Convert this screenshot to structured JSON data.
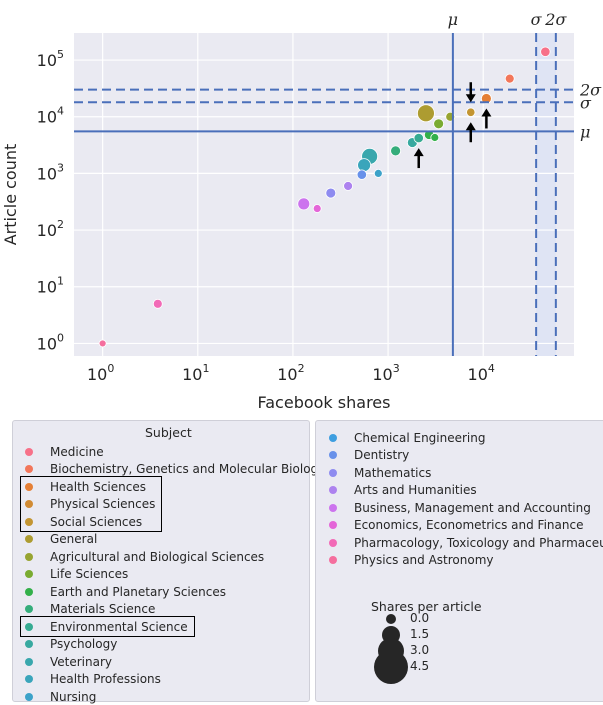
{
  "chart_data": {
    "type": "scatter",
    "xlabel": "Facebook shares",
    "ylabel": "Article count",
    "xscale": "log",
    "yscale": "log",
    "xlim": [
      0.5,
      90000
    ],
    "ylim": [
      0.6,
      300000
    ],
    "x_ticks": [
      {
        "value": 1,
        "label": "10^0"
      },
      {
        "value": 10,
        "label": "10^1"
      },
      {
        "value": 100,
        "label": "10^2"
      },
      {
        "value": 1000,
        "label": "10^3"
      },
      {
        "value": 10000,
        "label": "10^4"
      }
    ],
    "y_ticks": [
      {
        "value": 1,
        "label": "10^0"
      },
      {
        "value": 10,
        "label": "10^1"
      },
      {
        "value": 100,
        "label": "10^2"
      },
      {
        "value": 1000,
        "label": "10^3"
      },
      {
        "value": 10000,
        "label": "10^4"
      },
      {
        "value": 100000,
        "label": "10^5"
      }
    ],
    "grid": true,
    "reference_lines": [
      {
        "axis": "x",
        "value": 4800,
        "style": "solid",
        "label": "μ"
      },
      {
        "axis": "x",
        "value": 36000,
        "style": "dashed",
        "label": "σ"
      },
      {
        "axis": "x",
        "value": 58000,
        "style": "dashed",
        "label": "2σ"
      },
      {
        "axis": "y",
        "value": 5500,
        "style": "solid",
        "label": "μ"
      },
      {
        "axis": "y",
        "value": 18000,
        "style": "dashed",
        "label": "σ"
      },
      {
        "axis": "y",
        "value": 30000,
        "style": "dashed",
        "label": "2σ"
      }
    ],
    "shaded_band": {
      "x_from": 36000,
      "x_to": 58000
    },
    "arrows": [
      {
        "x": 7400,
        "y": 12000,
        "direction": "down"
      },
      {
        "x": 7400,
        "y": 12000,
        "direction": "up"
      },
      {
        "x": 10800,
        "y": 21000,
        "direction": "up"
      },
      {
        "x": 2100,
        "y": 4200,
        "direction": "up"
      }
    ],
    "points": [
      {
        "subject": "Medicine",
        "x": 45000,
        "y": 140000,
        "shares_per_article": 0.45
      },
      {
        "subject": "Biochemistry, Genetics and Molecular Biology",
        "x": 19000,
        "y": 47000,
        "shares_per_article": 0.4
      },
      {
        "subject": "Health Sciences",
        "x": 10800,
        "y": 21000,
        "shares_per_article": 0.5
      },
      {
        "subject": "Physical Sciences",
        "x": 7400,
        "y": 12000,
        "shares_per_article": 0.35
      },
      {
        "subject": "Social Sciences",
        "x": 7400,
        "y": 12000,
        "shares_per_article": 0.35
      },
      {
        "subject": "General",
        "x": 2500,
        "y": 11500,
        "shares_per_article": 1.2
      },
      {
        "subject": "Agricultural and Biological Sciences",
        "x": 4500,
        "y": 10000,
        "shares_per_article": 0.4
      },
      {
        "subject": "Life Sciences",
        "x": 3400,
        "y": 7500,
        "shares_per_article": 0.5
      },
      {
        "subject": "Earth and Planetary Sciences",
        "x": 2700,
        "y": 4800,
        "shares_per_article": 0.45
      },
      {
        "subject": "Earth and Planetary Sciences",
        "x": 3100,
        "y": 4300,
        "shares_per_article": 0.3
      },
      {
        "subject": "Materials Science",
        "x": 1200,
        "y": 2500,
        "shares_per_article": 0.5
      },
      {
        "subject": "Environmental Science",
        "x": 2100,
        "y": 4200,
        "shares_per_article": 0.45
      },
      {
        "subject": "Psychology",
        "x": 1800,
        "y": 3500,
        "shares_per_article": 0.5
      },
      {
        "subject": "Veterinary",
        "x": 640,
        "y": 2000,
        "shares_per_article": 1.1
      },
      {
        "subject": "Health Professions",
        "x": 560,
        "y": 1400,
        "shares_per_article": 0.8
      },
      {
        "subject": "Nursing",
        "x": 790,
        "y": 1000,
        "shares_per_article": 0.3
      },
      {
        "subject": "Dentistry",
        "x": 530,
        "y": 950,
        "shares_per_article": 0.45
      },
      {
        "subject": "Mathematics",
        "x": 250,
        "y": 450,
        "shares_per_article": 0.5
      },
      {
        "subject": "Arts and Humanities",
        "x": 380,
        "y": 600,
        "shares_per_article": 0.4
      },
      {
        "subject": "Business, Management and Accounting",
        "x": 130,
        "y": 290,
        "shares_per_article": 0.7
      },
      {
        "subject": "Economics, Econometrics and Finance",
        "x": 180,
        "y": 240,
        "shares_per_article": 0.3
      },
      {
        "subject": "Pharmacology, Toxicology and Pharmaceutics",
        "x": 3.8,
        "y": 5,
        "shares_per_article": 0.4
      },
      {
        "subject": "Physics and Astronomy",
        "x": 1,
        "y": 1,
        "shares_per_article": 0.2
      }
    ]
  },
  "legend": {
    "subject_title": "Subject",
    "subjects_left": [
      {
        "label": "Medicine",
        "color": "#f77189"
      },
      {
        "label": "Biochemistry, Genetics and Molecular Biology",
        "color": "#f2765a"
      },
      {
        "label": "Health Sciences",
        "color": "#e57f35"
      },
      {
        "label": "Physical Sciences",
        "color": "#d18b33"
      },
      {
        "label": "Social Sciences",
        "color": "#c39532"
      },
      {
        "label": "General",
        "color": "#ad9c31"
      },
      {
        "label": "Agricultural and Biological Sciences",
        "color": "#97a431"
      },
      {
        "label": "Life Sciences",
        "color": "#7aab31"
      },
      {
        "label": "Earth and Planetary Sciences",
        "color": "#33b04a"
      },
      {
        "label": "Materials Science",
        "color": "#35ad7b"
      },
      {
        "label": "Environmental Science",
        "color": "#36ab92"
      },
      {
        "label": "Psychology",
        "color": "#38a9a0"
      },
      {
        "label": "Veterinary",
        "color": "#39a7ad"
      },
      {
        "label": "Health Professions",
        "color": "#3aa5bb"
      },
      {
        "label": "Nursing",
        "color": "#3ca2c9"
      }
    ],
    "subjects_right": [
      {
        "label": "Chemical Engineering",
        "color": "#3e9ee0"
      },
      {
        "label": "Dentistry",
        "color": "#6891ea"
      },
      {
        "label": "Mathematics",
        "color": "#8e8bf0"
      },
      {
        "label": "Arts and Humanities",
        "color": "#ad82ef"
      },
      {
        "label": "Business, Management and Accounting",
        "color": "#cc74ee"
      },
      {
        "label": "Economics, Econometrics and Finance",
        "color": "#e466d8"
      },
      {
        "label": "Pharmacology, Toxicology and Pharmaceutics",
        "color": "#f26ab7"
      },
      {
        "label": "Physics and Astronomy",
        "color": "#f56e9e"
      }
    ],
    "highlighted": [
      "Health Sciences",
      "Physical Sciences",
      "Social Sciences",
      "Environmental Science"
    ],
    "size_title": "Shares per article",
    "size_entries": [
      {
        "label": "0.0",
        "value": 0.0
      },
      {
        "label": "1.5",
        "value": 1.5
      },
      {
        "label": "3.0",
        "value": 3.0
      },
      {
        "label": "4.5",
        "value": 4.5
      }
    ]
  }
}
